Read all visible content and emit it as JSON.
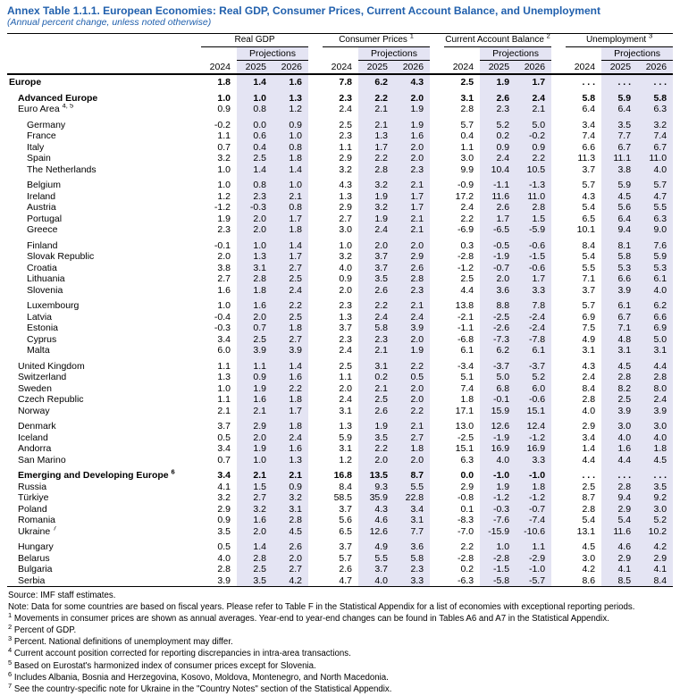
{
  "title": "Annex Table 1.1.1. European Economies: Real GDP, Consumer Prices, Current Account Balance, and Unemployment",
  "subtitle": "(Annual percent change, unless noted otherwise)",
  "colors": {
    "title_blue": "#2160ad",
    "projection_shade": "#e4e4f3",
    "rule_black": "#000000"
  },
  "table": {
    "projections_label": "Projections",
    "years": [
      "2024",
      "2025",
      "2026"
    ],
    "groups": [
      {
        "label": "Real GDP",
        "sup": ""
      },
      {
        "label": "Consumer Prices",
        "sup": "1"
      },
      {
        "label": "Current Account Balance",
        "sup": "2"
      },
      {
        "label": "Unemployment",
        "sup": "3"
      }
    ],
    "rows": [
      {
        "label": "Europe",
        "sup": "",
        "indent": 0,
        "bold": true,
        "gap": false,
        "v": [
          "1.8",
          "1.4",
          "1.6",
          "7.8",
          "6.2",
          "4.3",
          "2.5",
          "1.9",
          "1.7",
          ". . .",
          ". . .",
          ". . ."
        ]
      },
      {
        "label": "Advanced Europe",
        "sup": "",
        "indent": 1,
        "bold": true,
        "gap": true,
        "v": [
          "1.0",
          "1.0",
          "1.3",
          "2.3",
          "2.2",
          "2.0",
          "3.1",
          "2.6",
          "2.4",
          "5.8",
          "5.9",
          "5.8"
        ]
      },
      {
        "label": "Euro Area",
        "sup": "4, 5",
        "indent": 1,
        "bold": false,
        "gap": false,
        "v": [
          "0.9",
          "0.8",
          "1.2",
          "2.4",
          "2.1",
          "1.9",
          "2.8",
          "2.3",
          "2.1",
          "6.4",
          "6.4",
          "6.3"
        ]
      },
      {
        "label": "Germany",
        "sup": "",
        "indent": 2,
        "bold": false,
        "gap": true,
        "v": [
          "-0.2",
          "0.0",
          "0.9",
          "2.5",
          "2.1",
          "1.9",
          "5.7",
          "5.2",
          "5.0",
          "3.4",
          "3.5",
          "3.2"
        ]
      },
      {
        "label": "France",
        "sup": "",
        "indent": 2,
        "bold": false,
        "gap": false,
        "v": [
          "1.1",
          "0.6",
          "1.0",
          "2.3",
          "1.3",
          "1.6",
          "0.4",
          "0.2",
          "-0.2",
          "7.4",
          "7.7",
          "7.4"
        ]
      },
      {
        "label": "Italy",
        "sup": "",
        "indent": 2,
        "bold": false,
        "gap": false,
        "v": [
          "0.7",
          "0.4",
          "0.8",
          "1.1",
          "1.7",
          "2.0",
          "1.1",
          "0.9",
          "0.9",
          "6.6",
          "6.7",
          "6.7"
        ]
      },
      {
        "label": "Spain",
        "sup": "",
        "indent": 2,
        "bold": false,
        "gap": false,
        "v": [
          "3.2",
          "2.5",
          "1.8",
          "2.9",
          "2.2",
          "2.0",
          "3.0",
          "2.4",
          "2.2",
          "11.3",
          "11.1",
          "11.0"
        ]
      },
      {
        "label": "The Netherlands",
        "sup": "",
        "indent": 2,
        "bold": false,
        "gap": false,
        "v": [
          "1.0",
          "1.4",
          "1.4",
          "3.2",
          "2.8",
          "2.3",
          "9.9",
          "10.4",
          "10.5",
          "3.7",
          "3.8",
          "4.0"
        ]
      },
      {
        "label": "Belgium",
        "sup": "",
        "indent": 2,
        "bold": false,
        "gap": true,
        "v": [
          "1.0",
          "0.8",
          "1.0",
          "4.3",
          "3.2",
          "2.1",
          "-0.9",
          "-1.1",
          "-1.3",
          "5.7",
          "5.9",
          "5.7"
        ]
      },
      {
        "label": "Ireland",
        "sup": "",
        "indent": 2,
        "bold": false,
        "gap": false,
        "v": [
          "1.2",
          "2.3",
          "2.1",
          "1.3",
          "1.9",
          "1.7",
          "17.2",
          "11.6",
          "11.0",
          "4.3",
          "4.5",
          "4.7"
        ]
      },
      {
        "label": "Austria",
        "sup": "",
        "indent": 2,
        "bold": false,
        "gap": false,
        "v": [
          "-1.2",
          "-0.3",
          "0.8",
          "2.9",
          "3.2",
          "1.7",
          "2.4",
          "2.6",
          "2.8",
          "5.4",
          "5.6",
          "5.5"
        ]
      },
      {
        "label": "Portugal",
        "sup": "",
        "indent": 2,
        "bold": false,
        "gap": false,
        "v": [
          "1.9",
          "2.0",
          "1.7",
          "2.7",
          "1.9",
          "2.1",
          "2.2",
          "1.7",
          "1.5",
          "6.5",
          "6.4",
          "6.3"
        ]
      },
      {
        "label": "Greece",
        "sup": "",
        "indent": 2,
        "bold": false,
        "gap": false,
        "v": [
          "2.3",
          "2.0",
          "1.8",
          "3.0",
          "2.4",
          "2.1",
          "-6.9",
          "-6.5",
          "-5.9",
          "10.1",
          "9.4",
          "9.0"
        ]
      },
      {
        "label": "Finland",
        "sup": "",
        "indent": 2,
        "bold": false,
        "gap": true,
        "v": [
          "-0.1",
          "1.0",
          "1.4",
          "1.0",
          "2.0",
          "2.0",
          "0.3",
          "-0.5",
          "-0.6",
          "8.4",
          "8.1",
          "7.6"
        ]
      },
      {
        "label": "Slovak Republic",
        "sup": "",
        "indent": 2,
        "bold": false,
        "gap": false,
        "v": [
          "2.0",
          "1.3",
          "1.7",
          "3.2",
          "3.7",
          "2.9",
          "-2.8",
          "-1.9",
          "-1.5",
          "5.4",
          "5.8",
          "5.9"
        ]
      },
      {
        "label": "Croatia",
        "sup": "",
        "indent": 2,
        "bold": false,
        "gap": false,
        "v": [
          "3.8",
          "3.1",
          "2.7",
          "4.0",
          "3.7",
          "2.6",
          "-1.2",
          "-0.7",
          "-0.6",
          "5.5",
          "5.3",
          "5.3"
        ]
      },
      {
        "label": "Lithuania",
        "sup": "",
        "indent": 2,
        "bold": false,
        "gap": false,
        "v": [
          "2.7",
          "2.8",
          "2.5",
          "0.9",
          "3.5",
          "2.8",
          "2.5",
          "2.0",
          "1.7",
          "7.1",
          "6.6",
          "6.1"
        ]
      },
      {
        "label": "Slovenia",
        "sup": "",
        "indent": 2,
        "bold": false,
        "gap": false,
        "v": [
          "1.6",
          "1.8",
          "2.4",
          "2.0",
          "2.6",
          "2.3",
          "4.4",
          "3.6",
          "3.3",
          "3.7",
          "3.9",
          "4.0"
        ]
      },
      {
        "label": "Luxembourg",
        "sup": "",
        "indent": 2,
        "bold": false,
        "gap": true,
        "v": [
          "1.0",
          "1.6",
          "2.2",
          "2.3",
          "2.2",
          "2.1",
          "13.8",
          "8.8",
          "7.8",
          "5.7",
          "6.1",
          "6.2"
        ]
      },
      {
        "label": "Latvia",
        "sup": "",
        "indent": 2,
        "bold": false,
        "gap": false,
        "v": [
          "-0.4",
          "2.0",
          "2.5",
          "1.3",
          "2.4",
          "2.4",
          "-2.1",
          "-2.5",
          "-2.4",
          "6.9",
          "6.7",
          "6.6"
        ]
      },
      {
        "label": "Estonia",
        "sup": "",
        "indent": 2,
        "bold": false,
        "gap": false,
        "v": [
          "-0.3",
          "0.7",
          "1.8",
          "3.7",
          "5.8",
          "3.9",
          "-1.1",
          "-2.6",
          "-2.4",
          "7.5",
          "7.1",
          "6.9"
        ]
      },
      {
        "label": "Cyprus",
        "sup": "",
        "indent": 2,
        "bold": false,
        "gap": false,
        "v": [
          "3.4",
          "2.5",
          "2.7",
          "2.3",
          "2.3",
          "2.0",
          "-6.8",
          "-7.3",
          "-7.8",
          "4.9",
          "4.8",
          "5.0"
        ]
      },
      {
        "label": "Malta",
        "sup": "",
        "indent": 2,
        "bold": false,
        "gap": false,
        "v": [
          "6.0",
          "3.9",
          "3.9",
          "2.4",
          "2.1",
          "1.9",
          "6.1",
          "6.2",
          "6.1",
          "3.1",
          "3.1",
          "3.1"
        ]
      },
      {
        "label": "United Kingdom",
        "sup": "",
        "indent": 1,
        "bold": false,
        "gap": true,
        "v": [
          "1.1",
          "1.1",
          "1.4",
          "2.5",
          "3.1",
          "2.2",
          "-3.4",
          "-3.7",
          "-3.7",
          "4.3",
          "4.5",
          "4.4"
        ]
      },
      {
        "label": "Switzerland",
        "sup": "",
        "indent": 1,
        "bold": false,
        "gap": false,
        "v": [
          "1.3",
          "0.9",
          "1.6",
          "1.1",
          "0.2",
          "0.5",
          "5.1",
          "5.0",
          "5.2",
          "2.4",
          "2.8",
          "2.8"
        ]
      },
      {
        "label": "Sweden",
        "sup": "",
        "indent": 1,
        "bold": false,
        "gap": false,
        "v": [
          "1.0",
          "1.9",
          "2.2",
          "2.0",
          "2.1",
          "2.0",
          "7.4",
          "6.8",
          "6.0",
          "8.4",
          "8.2",
          "8.0"
        ]
      },
      {
        "label": "Czech Republic",
        "sup": "",
        "indent": 1,
        "bold": false,
        "gap": false,
        "v": [
          "1.1",
          "1.6",
          "1.8",
          "2.4",
          "2.5",
          "2.0",
          "1.8",
          "-0.1",
          "-0.6",
          "2.8",
          "2.5",
          "2.4"
        ]
      },
      {
        "label": "Norway",
        "sup": "",
        "indent": 1,
        "bold": false,
        "gap": false,
        "v": [
          "2.1",
          "2.1",
          "1.7",
          "3.1",
          "2.6",
          "2.2",
          "17.1",
          "15.9",
          "15.1",
          "4.0",
          "3.9",
          "3.9"
        ]
      },
      {
        "label": "Denmark",
        "sup": "",
        "indent": 1,
        "bold": false,
        "gap": true,
        "v": [
          "3.7",
          "2.9",
          "1.8",
          "1.3",
          "1.9",
          "2.1",
          "13.0",
          "12.6",
          "12.4",
          "2.9",
          "3.0",
          "3.0"
        ]
      },
      {
        "label": "Iceland",
        "sup": "",
        "indent": 1,
        "bold": false,
        "gap": false,
        "v": [
          "0.5",
          "2.0",
          "2.4",
          "5.9",
          "3.5",
          "2.7",
          "-2.5",
          "-1.9",
          "-1.2",
          "3.4",
          "4.0",
          "4.0"
        ]
      },
      {
        "label": "Andorra",
        "sup": "",
        "indent": 1,
        "bold": false,
        "gap": false,
        "v": [
          "3.4",
          "1.9",
          "1.6",
          "3.1",
          "2.2",
          "1.8",
          "15.1",
          "16.9",
          "16.9",
          "1.4",
          "1.6",
          "1.8"
        ]
      },
      {
        "label": "San Marino",
        "sup": "",
        "indent": 1,
        "bold": false,
        "gap": false,
        "v": [
          "0.7",
          "1.0",
          "1.3",
          "1.2",
          "2.0",
          "2.0",
          "6.3",
          "4.0",
          "3.3",
          "4.4",
          "4.4",
          "4.5"
        ]
      },
      {
        "label": "Emerging and Developing Europe",
        "sup": "6",
        "indent": 1,
        "bold": true,
        "gap": true,
        "v": [
          "3.4",
          "2.1",
          "2.1",
          "16.8",
          "13.5",
          "8.7",
          "0.0",
          "-1.0",
          "-1.0",
          ". . .",
          ". . .",
          ". . ."
        ]
      },
      {
        "label": "Russia",
        "sup": "",
        "indent": 1,
        "bold": false,
        "gap": false,
        "v": [
          "4.1",
          "1.5",
          "0.9",
          "8.4",
          "9.3",
          "5.5",
          "2.9",
          "1.9",
          "1.8",
          "2.5",
          "2.8",
          "3.5"
        ]
      },
      {
        "label": "Türkiye",
        "sup": "",
        "indent": 1,
        "bold": false,
        "gap": false,
        "v": [
          "3.2",
          "2.7",
          "3.2",
          "58.5",
          "35.9",
          "22.8",
          "-0.8",
          "-1.2",
          "-1.2",
          "8.7",
          "9.4",
          "9.2"
        ]
      },
      {
        "label": "Poland",
        "sup": "",
        "indent": 1,
        "bold": false,
        "gap": false,
        "v": [
          "2.9",
          "3.2",
          "3.1",
          "3.7",
          "4.3",
          "3.4",
          "0.1",
          "-0.3",
          "-0.7",
          "2.8",
          "2.9",
          "3.0"
        ]
      },
      {
        "label": "Romania",
        "sup": "",
        "indent": 1,
        "bold": false,
        "gap": false,
        "v": [
          "0.9",
          "1.6",
          "2.8",
          "5.6",
          "4.6",
          "3.1",
          "-8.3",
          "-7.6",
          "-7.4",
          "5.4",
          "5.4",
          "5.2"
        ]
      },
      {
        "label": "Ukraine",
        "sup": "7",
        "indent": 1,
        "bold": false,
        "gap": false,
        "v": [
          "3.5",
          "2.0",
          "4.5",
          "6.5",
          "12.6",
          "7.7",
          "-7.0",
          "-15.9",
          "-10.6",
          "13.1",
          "11.6",
          "10.2"
        ]
      },
      {
        "label": "Hungary",
        "sup": "",
        "indent": 1,
        "bold": false,
        "gap": true,
        "v": [
          "0.5",
          "1.4",
          "2.6",
          "3.7",
          "4.9",
          "3.6",
          "2.2",
          "1.0",
          "1.1",
          "4.5",
          "4.6",
          "4.2"
        ]
      },
      {
        "label": "Belarus",
        "sup": "",
        "indent": 1,
        "bold": false,
        "gap": false,
        "v": [
          "4.0",
          "2.8",
          "2.0",
          "5.7",
          "5.5",
          "5.8",
          "-2.8",
          "-2.8",
          "-2.9",
          "3.0",
          "2.9",
          "2.9"
        ]
      },
      {
        "label": "Bulgaria",
        "sup": "",
        "indent": 1,
        "bold": false,
        "gap": false,
        "v": [
          "2.8",
          "2.5",
          "2.7",
          "2.6",
          "3.7",
          "2.3",
          "0.2",
          "-1.5",
          "-1.0",
          "4.2",
          "4.1",
          "4.1"
        ]
      },
      {
        "label": "Serbia",
        "sup": "",
        "indent": 1,
        "bold": false,
        "gap": false,
        "v": [
          "3.9",
          "3.5",
          "4.2",
          "4.7",
          "4.0",
          "3.3",
          "-6.3",
          "-5.8",
          "-5.7",
          "8.6",
          "8.5",
          "8.4"
        ]
      }
    ]
  },
  "footnotes": [
    {
      "sup": "",
      "text": "Source: IMF staff estimates."
    },
    {
      "sup": "",
      "text": "Note: Data for some countries are based on fiscal years. Please refer to Table F in the Statistical Appendix for a list of economies with exceptional reporting periods."
    },
    {
      "sup": "1",
      "text": "Movements in consumer prices are shown as annual averages. Year-end to year-end changes can be found in Tables A6 and A7 in the Statistical Appendix."
    },
    {
      "sup": "2",
      "text": "Percent of GDP."
    },
    {
      "sup": "3",
      "text": "Percent. National definitions of unemployment may differ."
    },
    {
      "sup": "4",
      "text": "Current account position corrected for reporting discrepancies in intra-area transactions."
    },
    {
      "sup": "5",
      "text": "Based on Eurostat's harmonized index of consumer prices except for Slovenia."
    },
    {
      "sup": "6",
      "text": "Includes Albania, Bosnia and Herzegovina, Kosovo, Moldova, Montenegro, and North Macedonia."
    },
    {
      "sup": "7",
      "text": "See the country-specific note for Ukraine in the \"Country Notes\" section of the Statistical Appendix."
    }
  ]
}
